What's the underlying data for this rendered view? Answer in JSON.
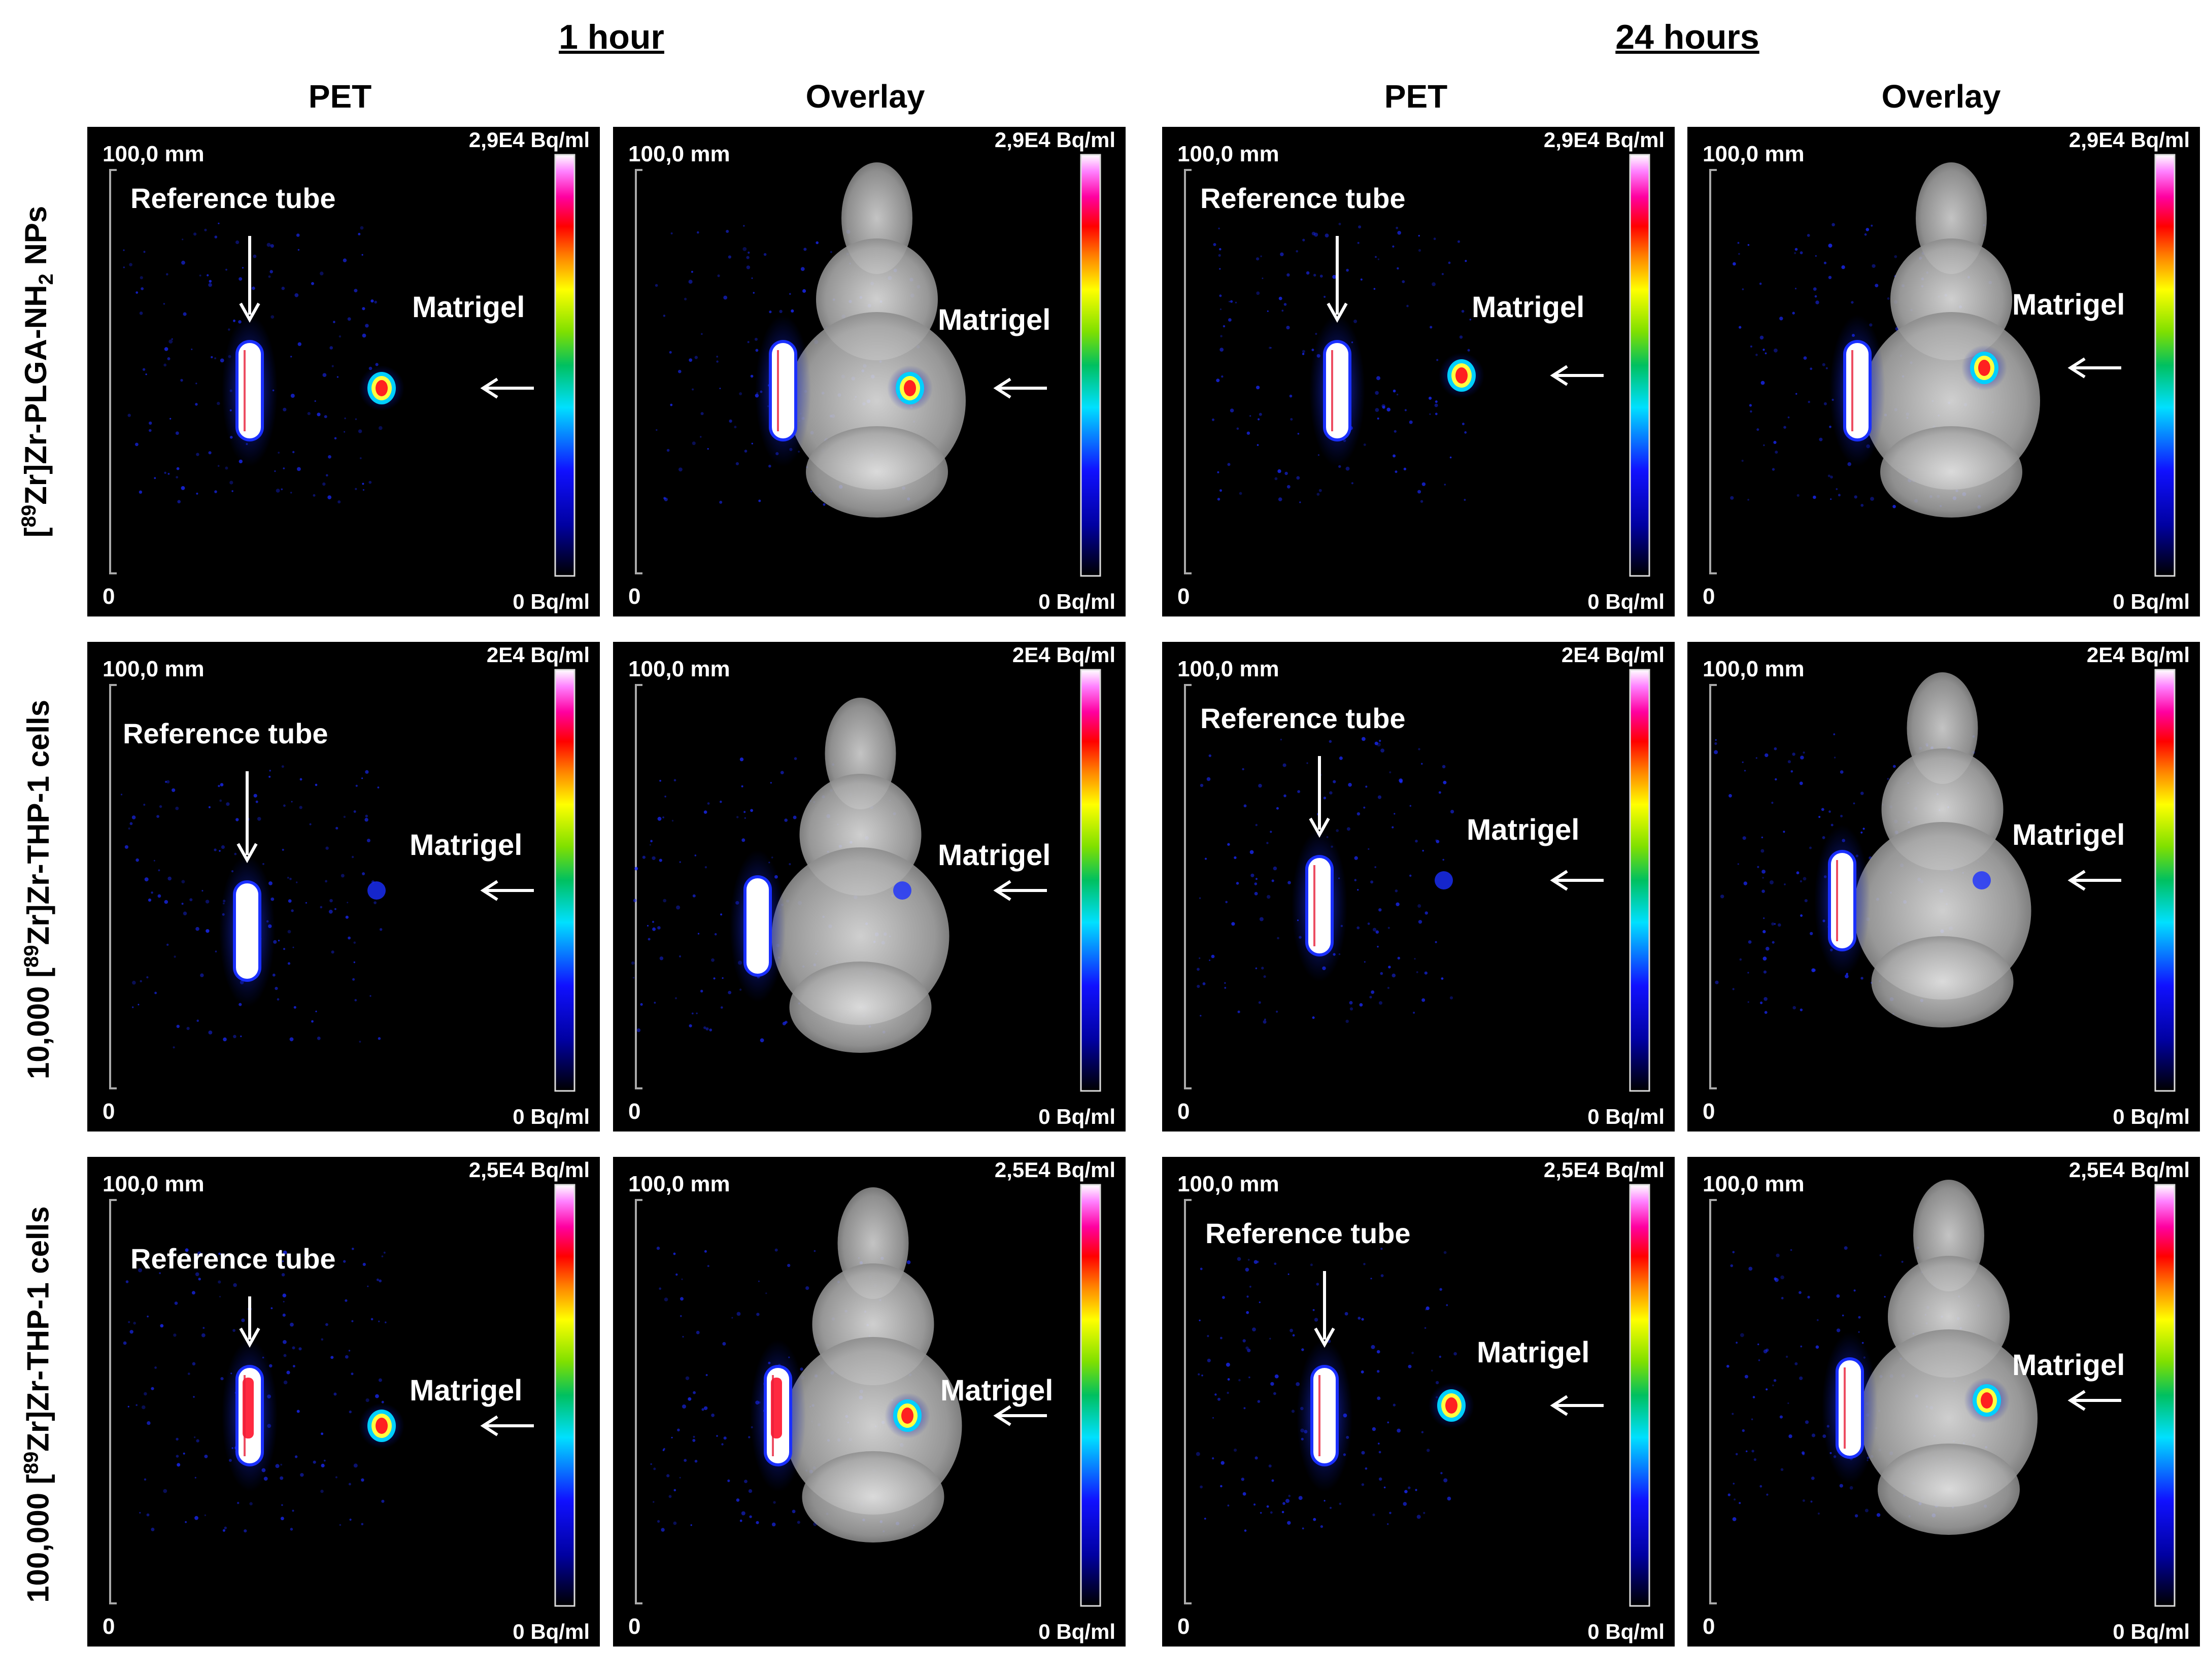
{
  "time_headers": [
    "1 hour",
    "24 hours"
  ],
  "column_headers": [
    "PET",
    "Overlay",
    "PET",
    "Overlay"
  ],
  "row_labels": [
    {
      "pre": "[",
      "sup": "89",
      "mid": "Zr]Zr-PLGA-NH",
      "sub": "2",
      "post": " NPs"
    },
    {
      "pre": "10,000 [",
      "sup": "89",
      "mid": "Zr]Zr-THP-1 cells",
      "sub": "",
      "post": ""
    },
    {
      "pre": "100,000 [",
      "sup": "89",
      "mid": "Zr]Zr-THP-1 cells",
      "sub": "",
      "post": ""
    }
  ],
  "scale": {
    "top_label": "100,0 mm",
    "bottom_label": "0"
  },
  "colorbar_min_label": "0 Bq/ml",
  "colorbar_max_labels": [
    "2,9E4 Bq/ml",
    "2E4 Bq/ml",
    "2,5E4 Bq/ml"
  ],
  "annotations": {
    "reference": "Reference tube",
    "matrigel": "Matrigel"
  },
  "colors": {
    "background": "#000000",
    "text": "#ffffff",
    "tube": "#ffffff",
    "hot": "#ff1a1a",
    "blue_glow": "#1f3cff",
    "mouse": "#bdbdbd"
  }
}
